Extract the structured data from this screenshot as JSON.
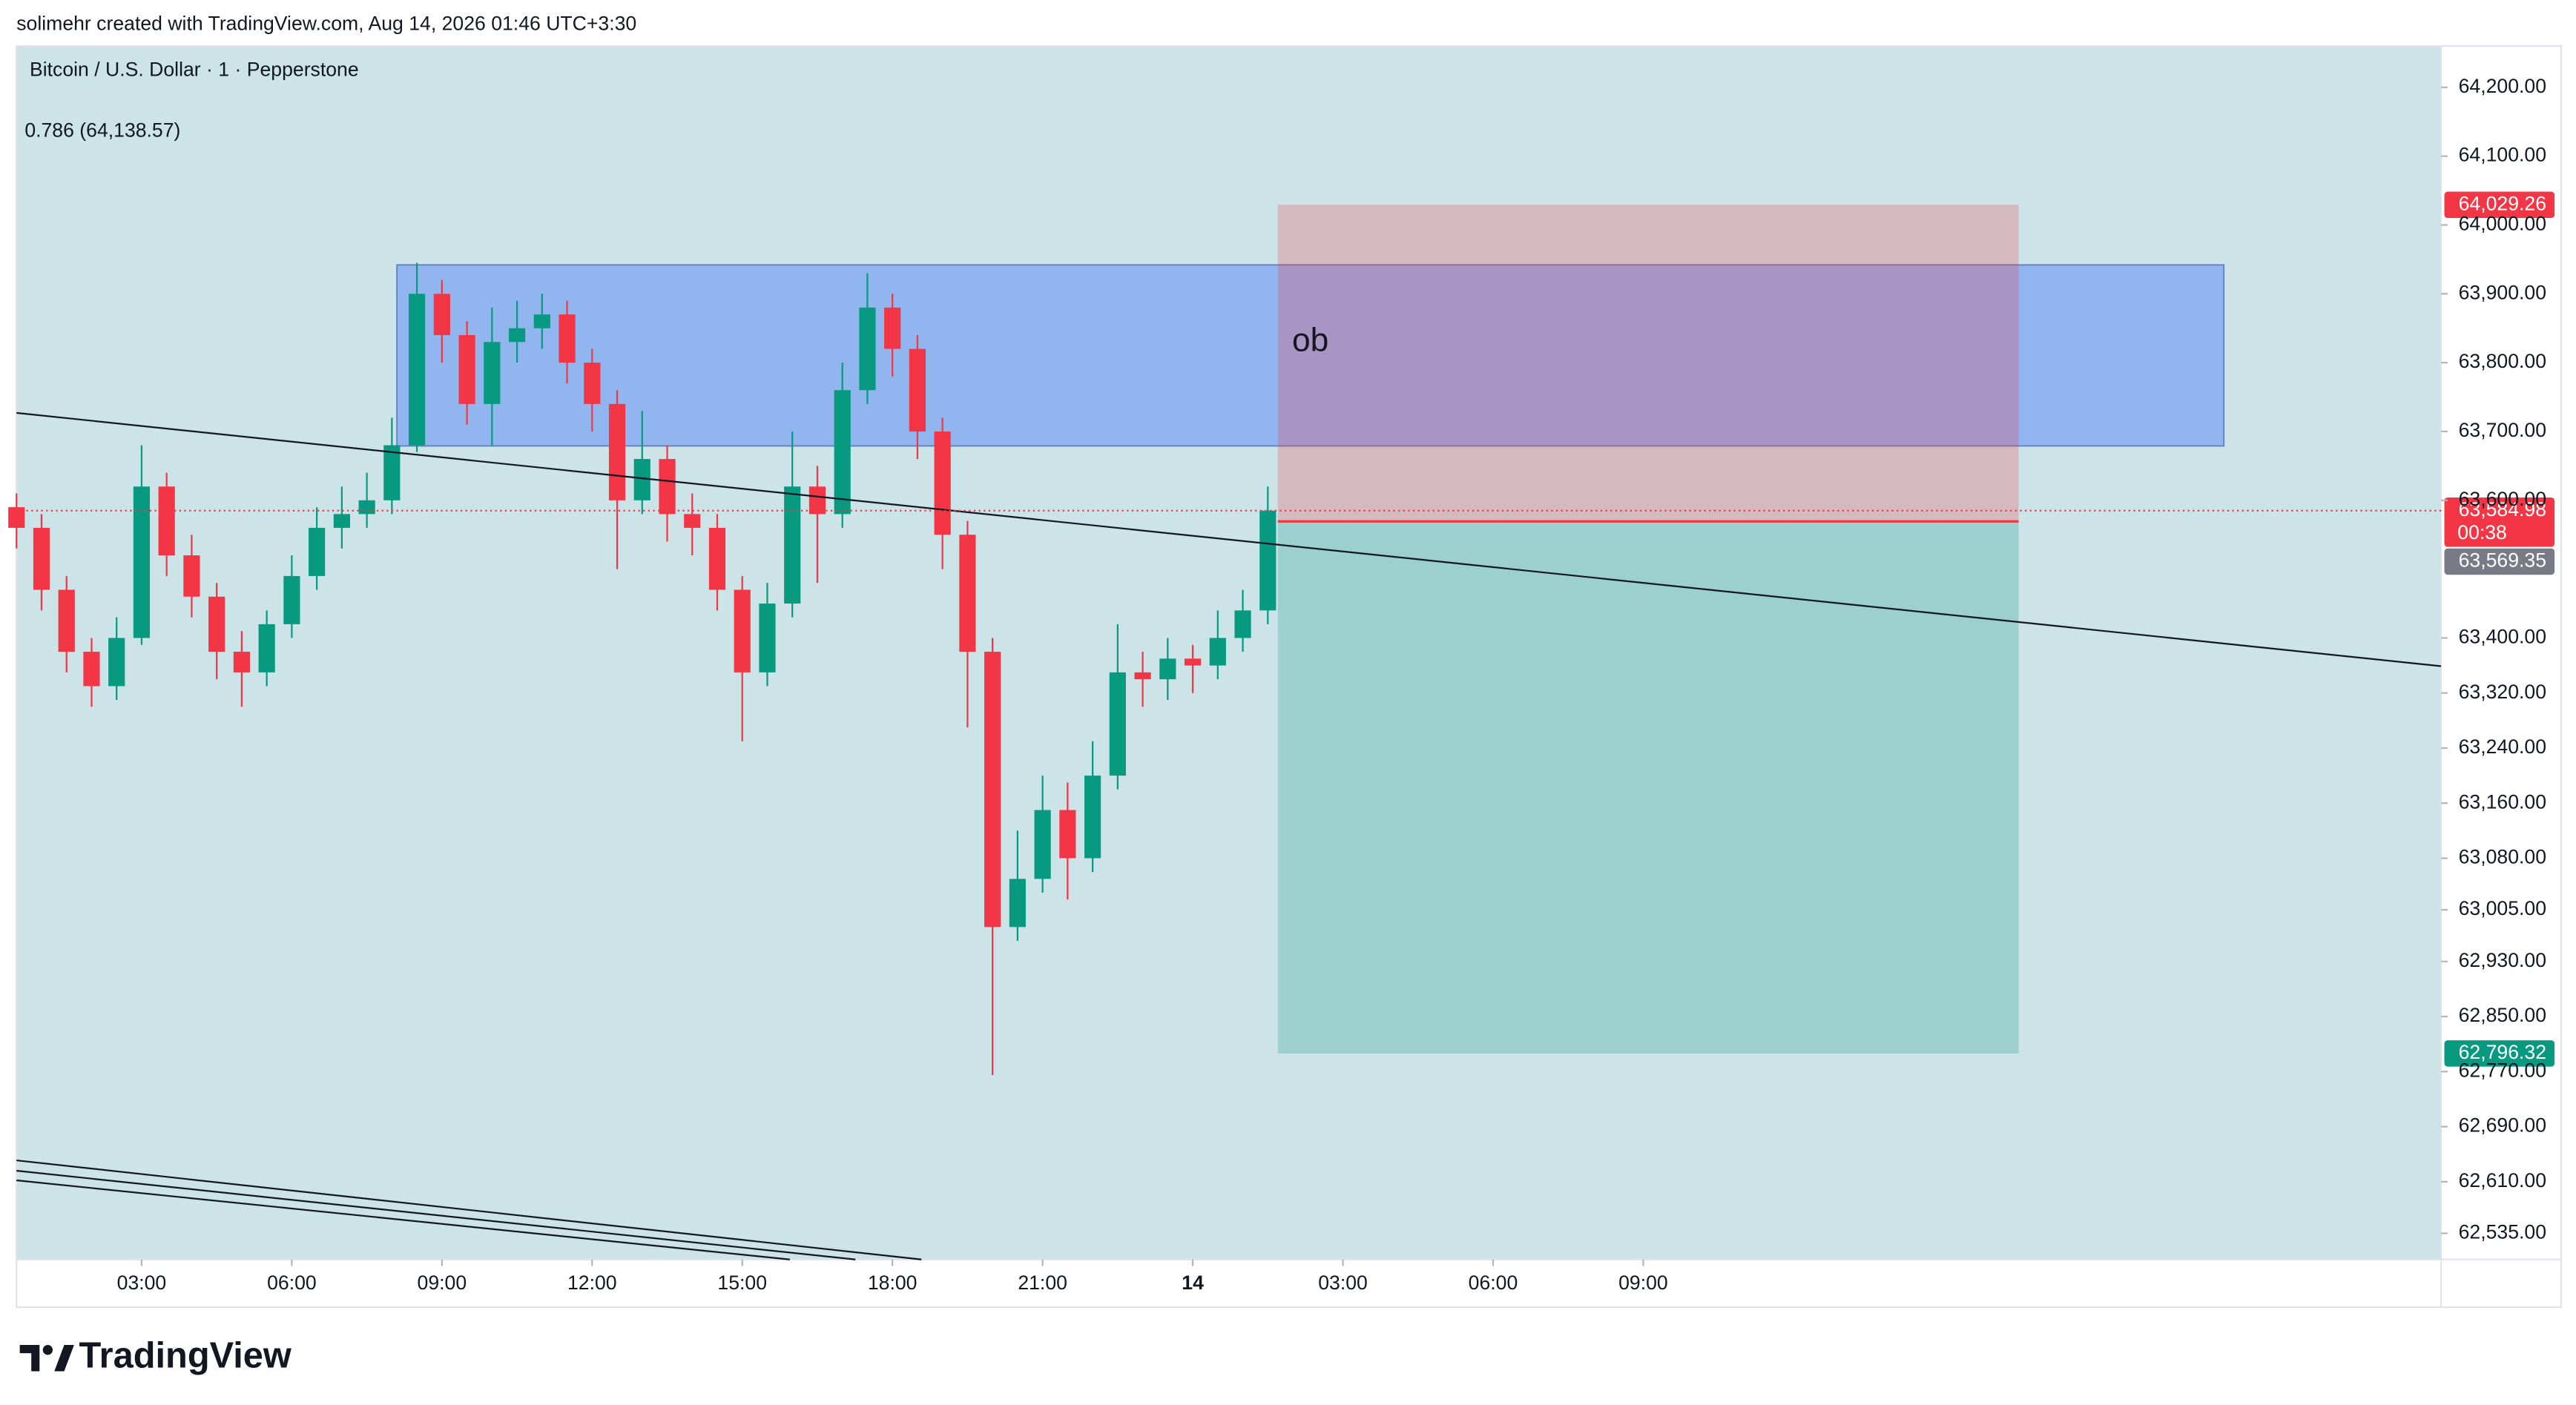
{
  "header": {
    "credit": "solimehr created with TradingView.com, Aug 14, 2026 01:46 UTC+3:30"
  },
  "chart_data": {
    "type": "candlestick",
    "title": "Bitcoin / U.S. Dollar · 1 · Pepperstone",
    "subtitle": "0.786 (64,138.57)",
    "x": [
      0.5,
      1.0,
      1.5,
      2.0,
      2.5,
      3.0,
      3.5,
      4.0,
      4.5,
      5.0,
      5.5,
      6.0,
      6.5,
      7.0,
      7.5,
      8.0,
      8.5,
      9.0,
      9.5,
      10.0,
      10.5,
      11.0,
      11.5,
      12.0,
      12.5,
      13.0,
      13.5,
      14.0,
      14.5,
      15.0,
      15.5,
      16.0,
      16.5,
      17.0,
      17.5,
      18.0,
      18.5,
      19.0,
      19.5,
      20.0,
      20.5,
      21.0,
      21.5,
      22.0,
      22.5,
      23.0,
      23.5,
      24.0,
      24.5,
      25.0,
      25.5
    ],
    "open": [
      63590,
      63560,
      63470,
      63380,
      63330,
      63400,
      63620,
      63520,
      63460,
      63380,
      63350,
      63420,
      63490,
      63560,
      63580,
      63600,
      63680,
      63900,
      63840,
      63740,
      63830,
      63850,
      63870,
      63800,
      63740,
      63600,
      63660,
      63580,
      63560,
      63470,
      63350,
      63450,
      63620,
      63580,
      63760,
      63880,
      63820,
      63700,
      63550,
      63380,
      62980,
      63050,
      63150,
      63080,
      63200,
      63350,
      63340,
      63370,
      63360,
      63400,
      63440
    ],
    "high": [
      63610,
      63580,
      63490,
      63400,
      63430,
      63680,
      63640,
      63550,
      63480,
      63410,
      63440,
      63520,
      63590,
      63620,
      63640,
      63720,
      63945,
      63920,
      63860,
      63880,
      63890,
      63900,
      63890,
      63820,
      63760,
      63730,
      63680,
      63610,
      63580,
      63490,
      63480,
      63700,
      63650,
      63800,
      63930,
      63900,
      63840,
      63720,
      63570,
      63400,
      63120,
      63200,
      63190,
      63250,
      63420,
      63380,
      63400,
      63390,
      63440,
      63470,
      63620
    ],
    "low": [
      63530,
      63440,
      63350,
      63300,
      63310,
      63390,
      63490,
      63430,
      63340,
      63300,
      63330,
      63400,
      63470,
      63530,
      63560,
      63580,
      63670,
      63800,
      63710,
      63680,
      63800,
      63820,
      63770,
      63700,
      63500,
      63580,
      63540,
      63520,
      63440,
      63250,
      63330,
      63430,
      63480,
      63560,
      63740,
      63780,
      63660,
      63500,
      63270,
      62765,
      62960,
      63030,
      63020,
      63060,
      63180,
      63300,
      63310,
      63320,
      63340,
      63380,
      63420
    ],
    "close": [
      63560,
      63470,
      63380,
      63330,
      63400,
      63620,
      63520,
      63460,
      63380,
      63350,
      63420,
      63490,
      63560,
      63580,
      63600,
      63680,
      63900,
      63840,
      63740,
      63830,
      63850,
      63870,
      63800,
      63740,
      63600,
      63660,
      63580,
      63560,
      63470,
      63350,
      63450,
      63620,
      63580,
      63760,
      63880,
      63820,
      63700,
      63550,
      63380,
      62980,
      63050,
      63150,
      63080,
      63200,
      63350,
      63340,
      63370,
      63360,
      63400,
      63440,
      63585
    ],
    "up_color": "#089981",
    "down_color": "#f23645",
    "grid": false,
    "xlim": [
      0.5,
      48.94
    ],
    "xticks": [
      {
        "value": 3,
        "label": "03:00"
      },
      {
        "value": 6,
        "label": "06:00"
      },
      {
        "value": 9,
        "label": "09:00"
      },
      {
        "value": 12,
        "label": "12:00"
      },
      {
        "value": 15,
        "label": "15:00"
      },
      {
        "value": 18,
        "label": "18:00"
      },
      {
        "value": 21,
        "label": "21:00"
      },
      {
        "value": 24,
        "label": "14"
      },
      {
        "value": 27,
        "label": "03:00"
      },
      {
        "value": 30,
        "label": "06:00"
      },
      {
        "value": 33,
        "label": "09:00"
      }
    ],
    "ylim": [
      62497,
      64260
    ],
    "yticks": [
      {
        "value": 64200,
        "label": "64,200.00"
      },
      {
        "value": 64100,
        "label": "64,100.00"
      },
      {
        "value": 64000,
        "label": "64,000.00"
      },
      {
        "value": 63900,
        "label": "63,900.00"
      },
      {
        "value": 63800,
        "label": "63,800.00"
      },
      {
        "value": 63700,
        "label": "63,700.00"
      },
      {
        "value": 63600,
        "label": "63,600.00"
      },
      {
        "value": 63400,
        "label": "63,400.00"
      },
      {
        "value": 63320,
        "label": "63,320.00"
      },
      {
        "value": 63240,
        "label": "63,240.00"
      },
      {
        "value": 63160,
        "label": "63,160.00"
      },
      {
        "value": 63080,
        "label": "63,080.00"
      },
      {
        "value": 63005,
        "label": "63,005.00"
      },
      {
        "value": 62930,
        "label": "62,930.00"
      },
      {
        "value": 62850,
        "label": "62,850.00"
      },
      {
        "value": 62770,
        "label": "62,770.00"
      },
      {
        "value": 62690,
        "label": "62,690.00"
      },
      {
        "value": 62610,
        "label": "62,610.00"
      },
      {
        "value": 62535,
        "label": "62,535.00"
      }
    ],
    "zone": {
      "label": "ob",
      "x": [
        8.1,
        44.6
      ],
      "y": [
        63679,
        63942
      ],
      "color": "#7ea6f0"
    },
    "trend_lines": [
      {
        "x": [
          0.5,
          48.94
        ],
        "y": [
          63727,
          63359
        ]
      },
      {
        "x": [
          0.5,
          18.58
        ],
        "y": [
          62641,
          62497
        ]
      },
      {
        "x": [
          0.5,
          17.26
        ],
        "y": [
          62626,
          62497
        ]
      },
      {
        "x": [
          0.5,
          15.95
        ],
        "y": [
          62612,
          62497
        ]
      }
    ],
    "position": {
      "x": [
        25.7,
        40.5
      ],
      "stop": {
        "value": 64029.26,
        "label": "64,029.26",
        "color": "#f23645"
      },
      "entry": {
        "value": 63569.35,
        "label": "63,569.35",
        "color": "#787b86"
      },
      "target": {
        "value": 62796.32,
        "label": "62,796.32",
        "color": "#089981"
      }
    },
    "last_price": {
      "value": 63584.98,
      "label": "63,584.98",
      "countdown": "00:38",
      "color": "#f23645"
    }
  },
  "footer": {
    "logo": "TradingView"
  }
}
